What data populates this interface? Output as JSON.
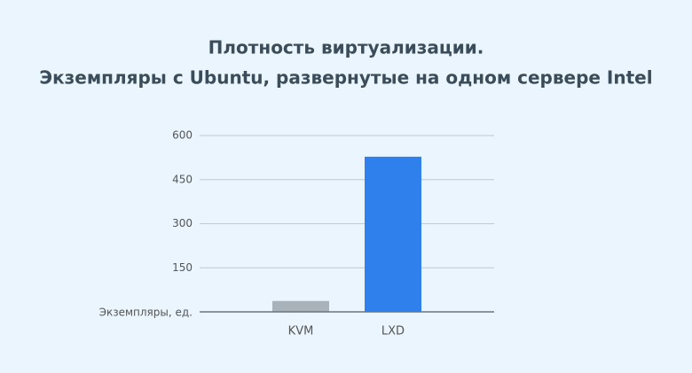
{
  "chart_data": {
    "type": "bar",
    "title": "Плотность виртуализации.",
    "subtitle": "Экземпляры с Ubuntu, развернутые на одном сервере Intel",
    "y_label": "Экземпляры, ед.",
    "categories": [
      "KVM",
      "LXD"
    ],
    "values": [
      37,
      528
    ],
    "colors": [
      "#a9b1b9",
      "#2f80ed"
    ],
    "ylim": [
      0,
      600
    ],
    "yticks": [
      150,
      300,
      450,
      600
    ],
    "grid": true
  }
}
